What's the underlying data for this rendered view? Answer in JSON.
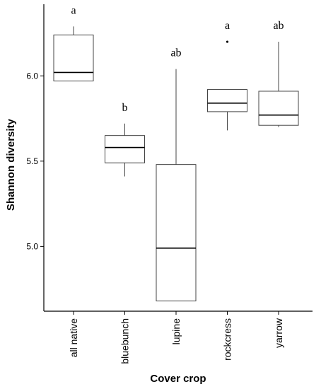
{
  "chart_data": {
    "type": "box",
    "xlabel": "Cover crop",
    "ylabel": "Shannon diversity",
    "ylim": [
      4.62,
      6.42
    ],
    "yticks": [
      5.0,
      5.5,
      6.0
    ],
    "ytick_labels": [
      "5.0",
      "5.5",
      "6.0"
    ],
    "categories": [
      "all native",
      "bluebunch",
      "lupine",
      "rockcress",
      "yarrow"
    ],
    "boxes": [
      {
        "category": "all native",
        "whisker_low": 5.97,
        "q1": 5.97,
        "median": 6.02,
        "q3": 6.24,
        "whisker_high": 6.29,
        "outliers": [],
        "letter": "a"
      },
      {
        "category": "bluebunch",
        "whisker_low": 5.41,
        "q1": 5.49,
        "median": 5.58,
        "q3": 5.65,
        "whisker_high": 5.72,
        "outliers": [],
        "letter": "b"
      },
      {
        "category": "lupine",
        "whisker_low": 4.68,
        "q1": 4.68,
        "median": 4.99,
        "q3": 5.48,
        "whisker_high": 6.04,
        "outliers": [],
        "letter": "ab"
      },
      {
        "category": "rockcress",
        "whisker_low": 5.68,
        "q1": 5.79,
        "median": 5.84,
        "q3": 5.92,
        "whisker_high": 5.92,
        "outliers": [
          6.2
        ],
        "letter": "a"
      },
      {
        "category": "yarrow",
        "whisker_low": 5.7,
        "q1": 5.71,
        "median": 5.77,
        "q3": 5.91,
        "whisker_high": 6.2,
        "outliers": [],
        "letter": "ab"
      }
    ]
  }
}
